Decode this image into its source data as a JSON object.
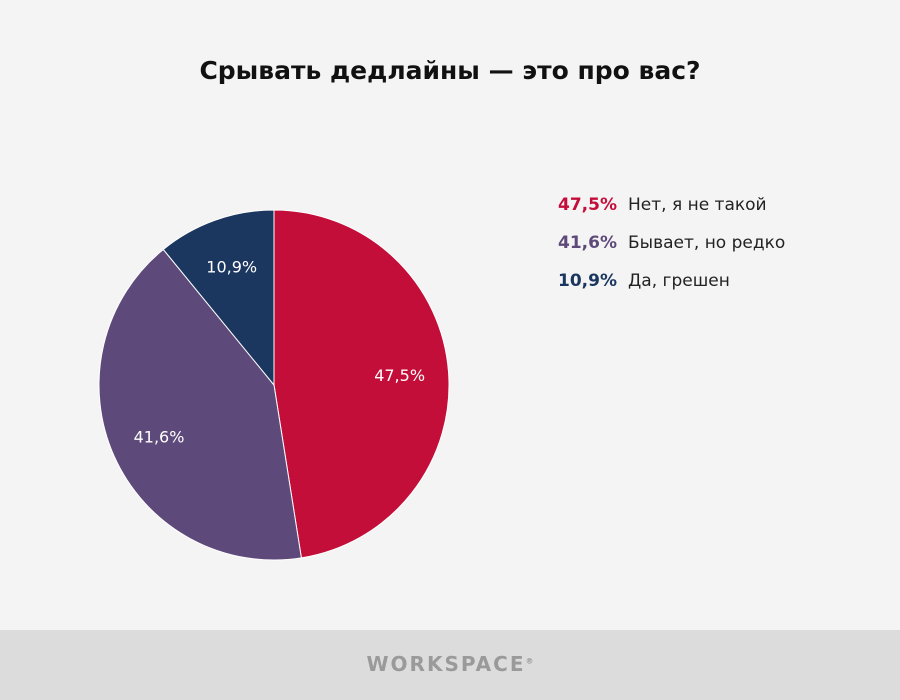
{
  "chart_data": {
    "type": "pie",
    "title": "Срывать дедлайны — это про вас?",
    "slices": [
      {
        "label": "Нет, я не такой",
        "value": 47.5,
        "display": "47,5%",
        "color": "#c40e3a"
      },
      {
        "label": "Бывает, но редко",
        "value": 41.6,
        "display": "41,6%",
        "color": "#5e4a7a"
      },
      {
        "label": "Да, грешен",
        "value": 10.9,
        "display": "10,9%",
        "color": "#1b3760"
      }
    ]
  },
  "footer": {
    "brand": "WORKSPACE",
    "brand_mark": "®"
  }
}
